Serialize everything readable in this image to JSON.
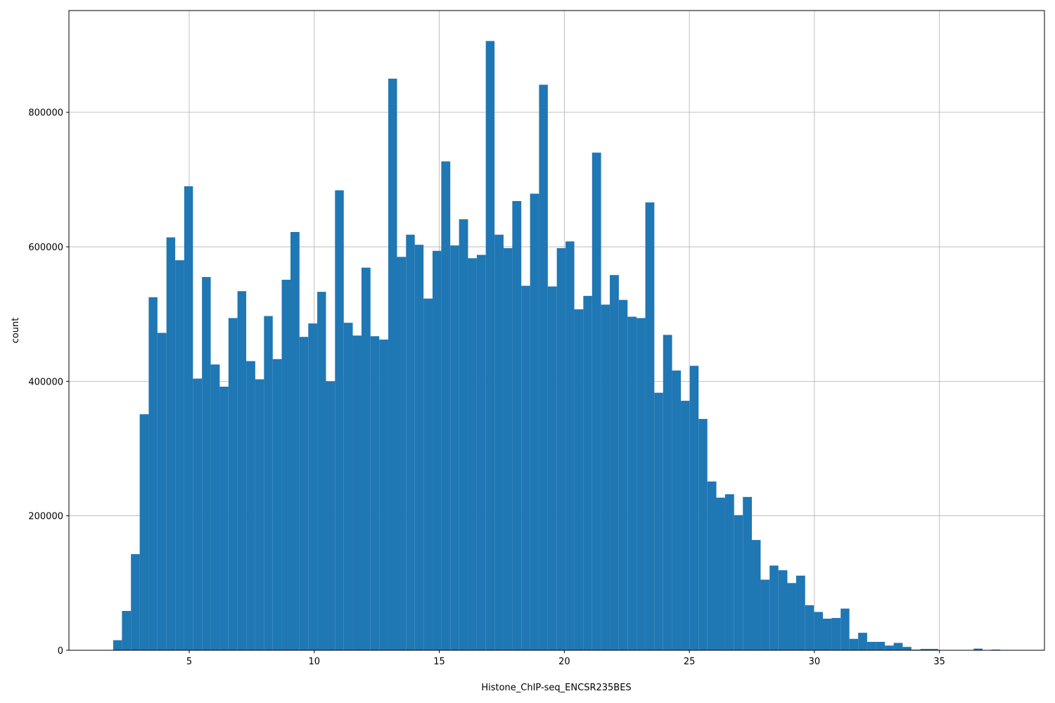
{
  "chart_data": {
    "type": "histogram",
    "xlabel": "Histone_ChIP-seq_ENCSR235BES",
    "ylabel": "count",
    "color": "#1f77b4",
    "grid": true,
    "bins": [
      1.96,
      2.31,
      2.67,
      3.02,
      3.38,
      3.73,
      4.09,
      4.44,
      4.8,
      5.15,
      5.51,
      5.86,
      6.22,
      6.57,
      6.93,
      7.28,
      7.64,
      7.99,
      8.34,
      8.7,
      9.05,
      9.41,
      9.76,
      10.12,
      10.47,
      10.83,
      11.18,
      11.54,
      11.89,
      12.25,
      12.6,
      12.96,
      13.31,
      13.67,
      14.02,
      14.37,
      14.73,
      15.08,
      15.44,
      15.79,
      16.15,
      16.5,
      16.86,
      17.21,
      17.57,
      17.92,
      18.28,
      18.63,
      18.99,
      19.34,
      19.7,
      20.05,
      20.4,
      20.76,
      21.11,
      21.47,
      21.82,
      22.18,
      22.53,
      22.89,
      23.24,
      23.6,
      23.95,
      24.31,
      24.66,
      25.02,
      25.37,
      25.72,
      26.08,
      26.43,
      26.79,
      27.14,
      27.5,
      27.85,
      28.21,
      28.56,
      28.92,
      29.27,
      29.63,
      29.98,
      30.34,
      30.69,
      31.05,
      31.4,
      31.75,
      32.11,
      32.46,
      32.82,
      33.17,
      33.53,
      33.88,
      34.24,
      34.59,
      34.95,
      35.3,
      35.66,
      36.01,
      36.37,
      36.72,
      37.08,
      37.43
    ],
    "values": [
      15000,
      58500,
      143000,
      351000,
      525000,
      472000,
      614000,
      580000,
      690000,
      404000,
      555000,
      425000,
      392000,
      494000,
      534000,
      430000,
      403000,
      497000,
      433000,
      551000,
      622000,
      466000,
      486000,
      533000,
      400000,
      684000,
      487000,
      468000,
      569000,
      467000,
      462000,
      850000,
      585000,
      618000,
      603000,
      523000,
      594000,
      727000,
      602000,
      641000,
      583000,
      588000,
      906000,
      618000,
      598000,
      668000,
      542000,
      679000,
      841000,
      541000,
      598000,
      608000,
      507000,
      527000,
      740000,
      514000,
      558000,
      521000,
      496000,
      494000,
      666000,
      383000,
      469000,
      416000,
      371000,
      423000,
      344000,
      251000,
      227000,
      232000,
      201000,
      228000,
      164000,
      105000,
      126000,
      119000,
      100000,
      111000,
      67000,
      57000,
      47000,
      48000,
      62000,
      17000,
      26000,
      12500,
      12500,
      7000,
      11000,
      5000,
      1000,
      2000,
      2000,
      500,
      0,
      0,
      0,
      2500,
      0,
      1000
    ],
    "xlim": [
      0.19,
      39.2
    ],
    "ylim": [
      0,
      951300
    ],
    "xticks": [
      5,
      10,
      15,
      20,
      25,
      30,
      35
    ],
    "yticks": [
      0,
      200000,
      400000,
      600000,
      800000
    ]
  }
}
